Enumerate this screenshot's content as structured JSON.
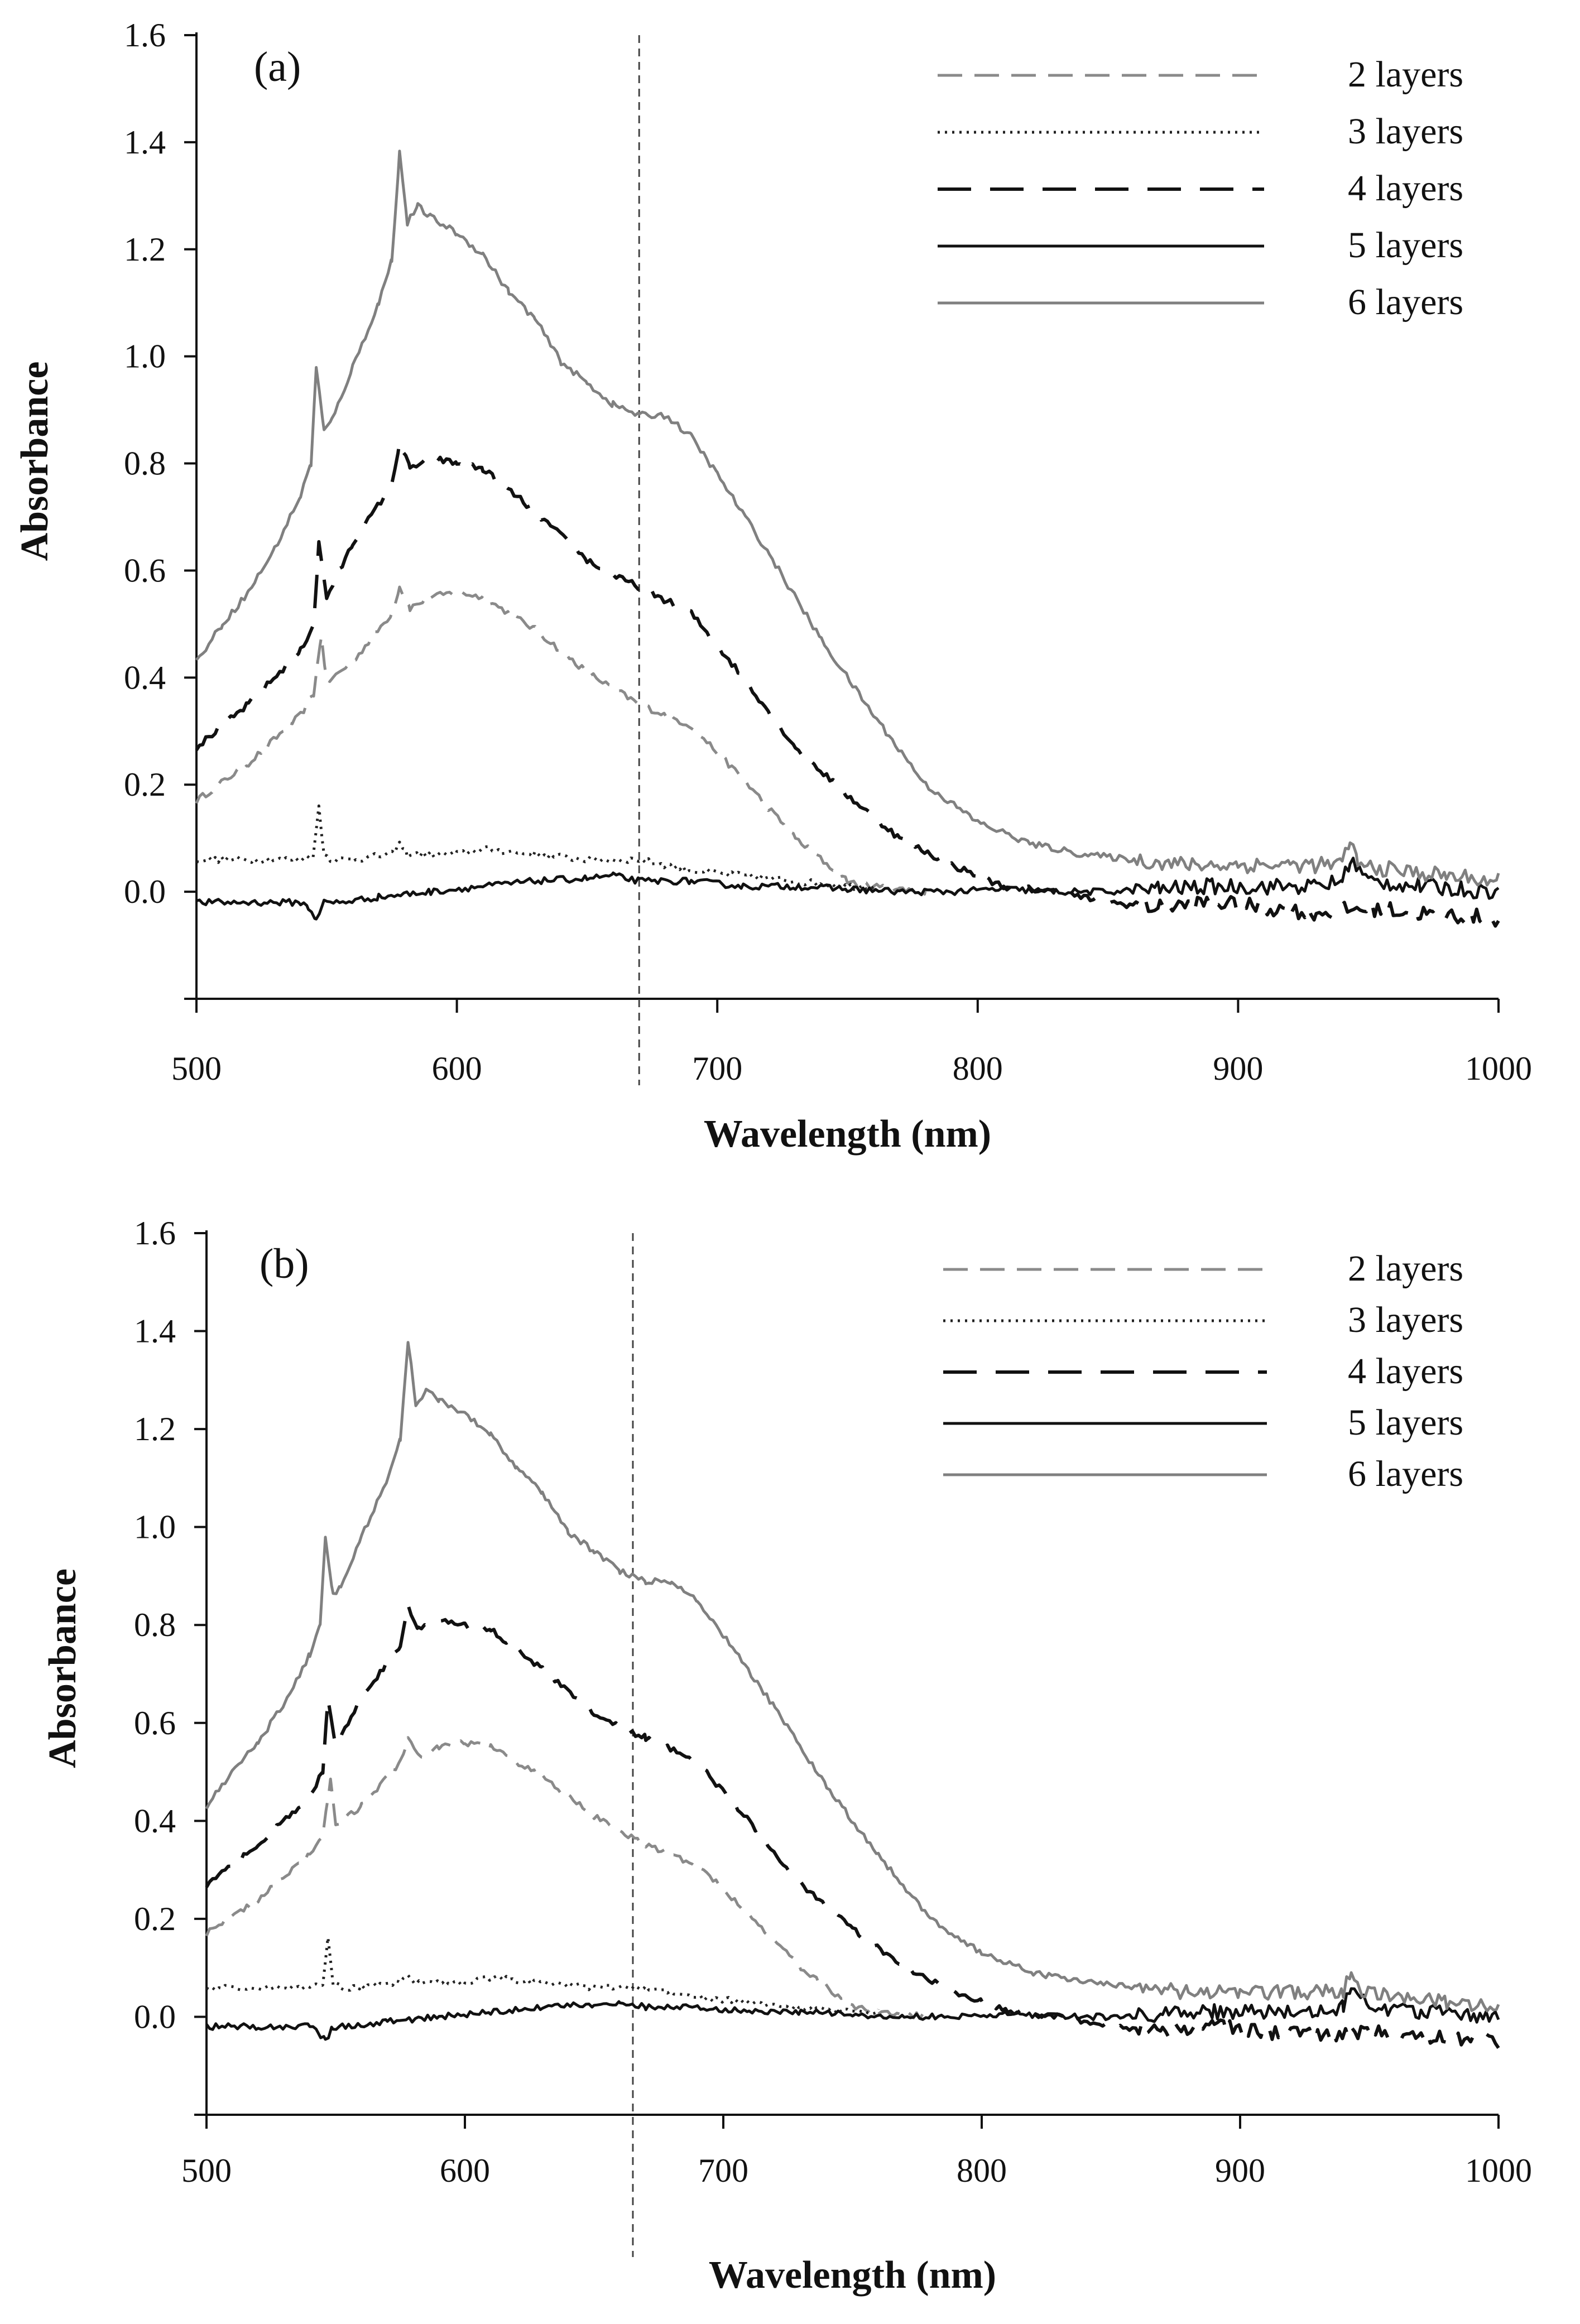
{
  "chart_data": [
    {
      "type": "line",
      "panel_label": "(a)",
      "xlabel": "Wavelength (nm)",
      "ylabel": "Absorbance",
      "xlim": [
        500,
        1000
      ],
      "ylim": [
        -0.2,
        1.6
      ],
      "x_ticks": [
        500,
        600,
        700,
        800,
        900,
        1000
      ],
      "y_ticks": [
        0.0,
        0.2,
        0.4,
        0.6,
        0.8,
        1.0,
        1.2,
        1.4,
        1.6
      ],
      "y_tick_labels": [
        "0.0",
        "0.2",
        "0.4",
        "0.6",
        "0.8",
        "1.0",
        "1.2",
        "1.4",
        "1.6"
      ],
      "grid": false,
      "legend_position": "top-right",
      "reference_line_x": 670,
      "series": [
        {
          "name": "2 layers",
          "style": "long-dash-gray",
          "color": "#8a8a8a",
          "x": [
            500,
            520,
            540,
            545,
            548,
            550,
            560,
            575,
            578,
            582,
            590,
            600,
            610,
            630,
            650,
            670,
            690,
            710,
            730,
            750,
            760,
            770,
            780
          ],
          "y": [
            0.17,
            0.24,
            0.33,
            0.37,
            0.48,
            0.39,
            0.43,
            0.52,
            0.57,
            0.53,
            0.55,
            0.56,
            0.55,
            0.49,
            0.41,
            0.35,
            0.31,
            0.21,
            0.1,
            0.02,
            0.01,
            0.005,
            0.0
          ]
        },
        {
          "name": "3 layers",
          "style": "dotted-black",
          "color": "#222222",
          "x": [
            500,
            520,
            540,
            545,
            547,
            549,
            552,
            560,
            575,
            578,
            581,
            590,
            600,
            610,
            630,
            650,
            670,
            690,
            710,
            730,
            750,
            760
          ],
          "y": [
            0.06,
            0.06,
            0.06,
            0.07,
            0.16,
            0.07,
            0.06,
            0.06,
            0.07,
            0.09,
            0.07,
            0.07,
            0.07,
            0.08,
            0.07,
            0.06,
            0.06,
            0.04,
            0.03,
            0.02,
            0.01,
            0.01
          ]
        },
        {
          "name": "4 layers",
          "style": "dash-black",
          "color": "#111111",
          "x": [
            500,
            520,
            540,
            545,
            547,
            550,
            560,
            575,
            578,
            582,
            590,
            600,
            610,
            630,
            650,
            660,
            670,
            690,
            710,
            730,
            750,
            770,
            790,
            810,
            830,
            850,
            870,
            890,
            910,
            930,
            950,
            970,
            1000
          ],
          "y": [
            0.27,
            0.35,
            0.45,
            0.5,
            0.65,
            0.55,
            0.65,
            0.76,
            0.84,
            0.79,
            0.81,
            0.8,
            0.79,
            0.71,
            0.62,
            0.59,
            0.57,
            0.52,
            0.4,
            0.27,
            0.18,
            0.1,
            0.05,
            0.01,
            0.0,
            -0.02,
            -0.03,
            -0.02,
            -0.03,
            -0.04,
            -0.03,
            -0.04,
            -0.05
          ]
        },
        {
          "name": "5 layers",
          "style": "solid-black",
          "color": "#111111",
          "x": [
            500,
            520,
            540,
            543,
            546,
            549,
            555,
            570,
            590,
            610,
            630,
            650,
            660,
            670,
            690,
            710,
            730,
            750,
            770,
            790,
            810,
            830,
            850,
            870,
            890,
            910,
            930,
            940,
            943,
            950,
            970,
            1000
          ],
          "y": [
            -0.02,
            -0.02,
            -0.02,
            -0.03,
            -0.05,
            -0.02,
            -0.02,
            -0.01,
            0.0,
            0.01,
            0.02,
            0.025,
            0.03,
            0.02,
            0.02,
            0.01,
            0.01,
            0.005,
            0.0,
            0.0,
            0.005,
            0.0,
            0.0,
            0.005,
            0.01,
            0.01,
            0.01,
            0.02,
            0.06,
            0.02,
            0.01,
            0.0
          ]
        },
        {
          "name": "6 layers",
          "style": "solid-gray",
          "color": "#808080",
          "x": [
            500,
            510,
            520,
            530,
            540,
            544,
            546,
            549,
            552,
            560,
            570,
            575,
            578,
            581,
            585,
            590,
            600,
            610,
            620,
            630,
            640,
            650,
            660,
            670,
            680,
            690,
            700,
            720,
            740,
            760,
            780,
            800,
            820,
            840,
            860,
            880,
            900,
            920,
            940,
            943,
            946,
            960,
            980,
            1000
          ],
          "y": [
            0.43,
            0.5,
            0.56,
            0.64,
            0.74,
            0.8,
            0.98,
            0.86,
            0.88,
            0.98,
            1.1,
            1.18,
            1.38,
            1.25,
            1.28,
            1.26,
            1.23,
            1.19,
            1.12,
            1.07,
            0.99,
            0.95,
            0.91,
            0.89,
            0.89,
            0.85,
            0.78,
            0.63,
            0.47,
            0.33,
            0.2,
            0.13,
            0.09,
            0.07,
            0.06,
            0.05,
            0.05,
            0.05,
            0.05,
            0.1,
            0.05,
            0.04,
            0.03,
            0.02
          ]
        }
      ]
    },
    {
      "type": "line",
      "panel_label": "(b)",
      "xlabel": "Wavelength (nm)",
      "ylabel": "Absorbance",
      "xlim": [
        500,
        1000
      ],
      "ylim": [
        -0.2,
        1.6
      ],
      "x_ticks": [
        500,
        600,
        700,
        800,
        900,
        1000
      ],
      "y_ticks": [
        0.0,
        0.2,
        0.4,
        0.6,
        0.8,
        1.0,
        1.2,
        1.4,
        1.6
      ],
      "y_tick_labels": [
        "0.0",
        "0.2",
        "0.4",
        "0.6",
        "0.8",
        "1.0",
        "1.2",
        "1.4",
        "1.6"
      ],
      "grid": false,
      "legend_position": "top-right",
      "reference_line_x": 665,
      "series": [
        {
          "name": "2 layers",
          "style": "long-dash-gray",
          "color": "#8a8a8a",
          "x": [
            500,
            520,
            540,
            545,
            548,
            550,
            560,
            575,
            578,
            582,
            590,
            600,
            610,
            630,
            650,
            670,
            690,
            710,
            730,
            750,
            760,
            770,
            780
          ],
          "y": [
            0.17,
            0.24,
            0.33,
            0.37,
            0.48,
            0.39,
            0.43,
            0.52,
            0.57,
            0.53,
            0.55,
            0.56,
            0.55,
            0.49,
            0.41,
            0.35,
            0.31,
            0.21,
            0.1,
            0.02,
            0.01,
            0.005,
            0.0
          ]
        },
        {
          "name": "3 layers",
          "style": "dotted-black",
          "color": "#222222",
          "x": [
            500,
            520,
            540,
            545,
            547,
            549,
            552,
            560,
            575,
            578,
            581,
            590,
            600,
            610,
            630,
            650,
            670,
            690,
            710,
            730,
            750,
            760
          ],
          "y": [
            0.06,
            0.06,
            0.06,
            0.07,
            0.16,
            0.07,
            0.06,
            0.06,
            0.07,
            0.09,
            0.07,
            0.07,
            0.07,
            0.08,
            0.07,
            0.06,
            0.06,
            0.04,
            0.03,
            0.02,
            0.01,
            0.01
          ]
        },
        {
          "name": "4 layers",
          "style": "dash-black",
          "color": "#111111",
          "x": [
            500,
            520,
            540,
            545,
            547,
            550,
            560,
            575,
            578,
            582,
            590,
            600,
            610,
            630,
            650,
            660,
            670,
            690,
            710,
            730,
            750,
            770,
            790,
            810,
            830,
            850,
            870,
            890,
            910,
            930,
            950,
            970,
            1000
          ],
          "y": [
            0.27,
            0.35,
            0.45,
            0.5,
            0.65,
            0.55,
            0.65,
            0.76,
            0.84,
            0.79,
            0.81,
            0.8,
            0.79,
            0.71,
            0.62,
            0.59,
            0.57,
            0.52,
            0.4,
            0.27,
            0.18,
            0.1,
            0.05,
            0.01,
            0.0,
            -0.02,
            -0.03,
            -0.02,
            -0.03,
            -0.04,
            -0.03,
            -0.04,
            -0.05
          ]
        },
        {
          "name": "5 layers",
          "style": "solid-black",
          "color": "#111111",
          "x": [
            500,
            520,
            540,
            543,
            546,
            549,
            555,
            570,
            590,
            610,
            630,
            650,
            660,
            670,
            690,
            710,
            730,
            750,
            770,
            790,
            810,
            830,
            850,
            870,
            890,
            910,
            930,
            940,
            943,
            950,
            970,
            1000
          ],
          "y": [
            -0.02,
            -0.02,
            -0.02,
            -0.03,
            -0.05,
            -0.02,
            -0.02,
            -0.01,
            0.0,
            0.01,
            0.02,
            0.025,
            0.03,
            0.02,
            0.02,
            0.01,
            0.01,
            0.005,
            0.0,
            0.0,
            0.005,
            0.0,
            0.0,
            0.005,
            0.01,
            0.01,
            0.01,
            0.02,
            0.06,
            0.02,
            0.01,
            0.0
          ]
        },
        {
          "name": "6 layers",
          "style": "solid-gray",
          "color": "#808080",
          "x": [
            500,
            510,
            520,
            530,
            540,
            544,
            546,
            549,
            552,
            560,
            570,
            575,
            578,
            581,
            585,
            590,
            600,
            610,
            620,
            630,
            640,
            650,
            660,
            670,
            680,
            690,
            700,
            720,
            740,
            760,
            780,
            800,
            820,
            840,
            860,
            880,
            900,
            920,
            940,
            943,
            946,
            960,
            980,
            1000
          ],
          "y": [
            0.43,
            0.5,
            0.56,
            0.64,
            0.74,
            0.8,
            0.98,
            0.86,
            0.88,
            0.98,
            1.1,
            1.18,
            1.38,
            1.25,
            1.28,
            1.26,
            1.23,
            1.19,
            1.12,
            1.07,
            0.99,
            0.95,
            0.91,
            0.89,
            0.89,
            0.85,
            0.78,
            0.63,
            0.47,
            0.33,
            0.2,
            0.13,
            0.09,
            0.07,
            0.06,
            0.05,
            0.05,
            0.05,
            0.05,
            0.1,
            0.05,
            0.04,
            0.03,
            0.02
          ]
        }
      ]
    }
  ]
}
